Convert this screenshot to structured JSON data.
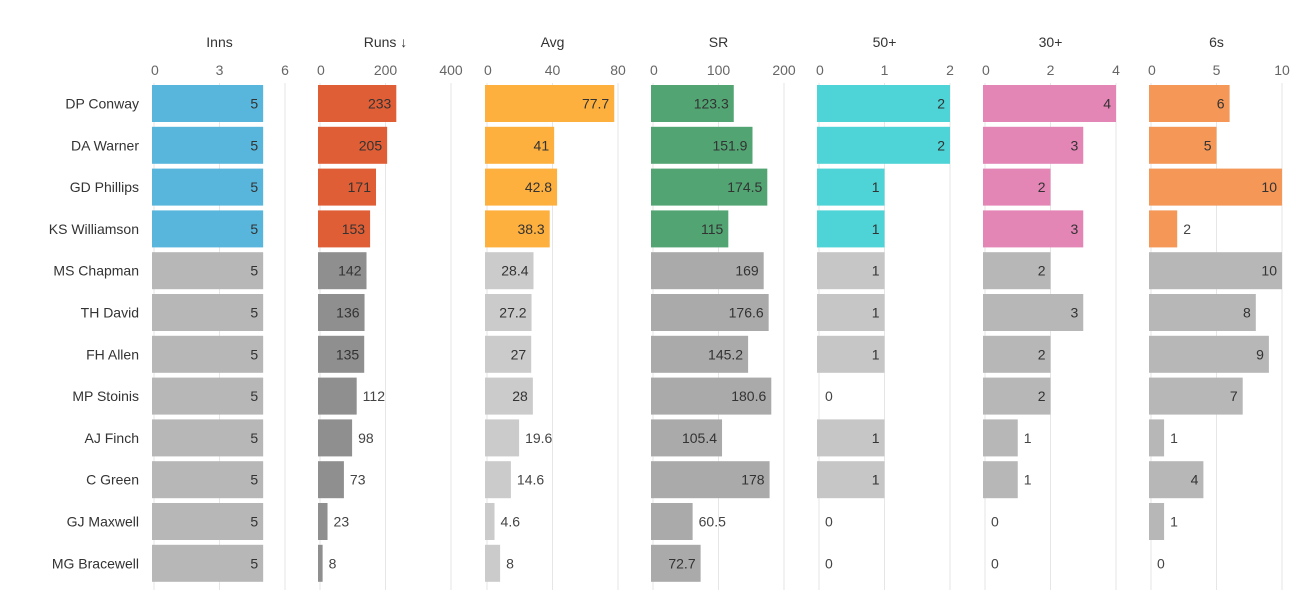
{
  "chart_data": {
    "type": "bar",
    "orientation": "horizontal",
    "sort_indicator": "↓",
    "highlight_count": 4,
    "categories": [
      "DP Conway",
      "DA Warner",
      "GD Phillips",
      "KS Williamson",
      "MS Chapman",
      "TH David",
      "FH Allen",
      "MP Stoinis",
      "AJ Finch",
      "C Green",
      "GJ Maxwell",
      "MG Bracewell"
    ],
    "series": [
      {
        "name": "Inns",
        "color": "#58b6dc",
        "grey": "#b7b7b7",
        "sorted": false,
        "xlim": [
          0,
          6
        ],
        "ticks": [
          0,
          3,
          6
        ],
        "values": [
          5,
          5,
          5,
          5,
          5,
          5,
          5,
          5,
          5,
          5,
          5,
          5
        ]
      },
      {
        "name": "Runs",
        "color": "#e05e35",
        "grey": "#8f8f8f",
        "sorted": true,
        "xlim": [
          0,
          400
        ],
        "ticks": [
          0,
          200,
          400
        ],
        "values": [
          233,
          205,
          171,
          153,
          142,
          136,
          135,
          112,
          98,
          73,
          23,
          8
        ]
      },
      {
        "name": "Avg",
        "color": "#fdb03e",
        "grey": "#cbcbcb",
        "sorted": false,
        "xlim": [
          0,
          80
        ],
        "ticks": [
          0,
          40,
          80
        ],
        "values": [
          77.7,
          41,
          42.8,
          38.3,
          28.4,
          27.2,
          27,
          28,
          19.6,
          14.6,
          4.6,
          8
        ]
      },
      {
        "name": "SR",
        "color": "#52a573",
        "grey": "#aaaaaa",
        "sorted": false,
        "xlim": [
          0,
          200
        ],
        "ticks": [
          0,
          100,
          200
        ],
        "values": [
          123.3,
          151.9,
          174.5,
          115,
          169,
          176.6,
          145.2,
          180.6,
          105.4,
          178,
          60.5,
          72.7
        ]
      },
      {
        "name": "50+",
        "color": "#4ed3d6",
        "grey": "#c6c6c6",
        "sorted": false,
        "xlim": [
          0,
          2
        ],
        "ticks": [
          0,
          1,
          2
        ],
        "values": [
          2,
          2,
          1,
          1,
          1,
          1,
          1,
          0,
          1,
          1,
          0,
          0
        ]
      },
      {
        "name": "30+",
        "color": "#e385b5",
        "grey": "#b7b7b7",
        "sorted": false,
        "xlim": [
          0,
          4
        ],
        "ticks": [
          0,
          2,
          4
        ],
        "values": [
          4,
          3,
          2,
          3,
          2,
          3,
          2,
          2,
          1,
          1,
          0,
          0
        ]
      },
      {
        "name": "6s",
        "color": "#f49757",
        "grey": "#b7b7b7",
        "sorted": false,
        "xlim": [
          0,
          10
        ],
        "ticks": [
          0,
          5,
          10
        ],
        "values": [
          6,
          5,
          10,
          2,
          10,
          8,
          9,
          7,
          1,
          4,
          1,
          0
        ]
      }
    ],
    "grid": true,
    "legend": "none"
  }
}
